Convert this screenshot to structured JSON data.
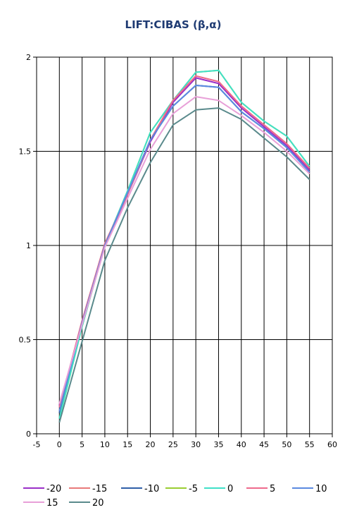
{
  "chart_data": {
    "type": "line",
    "title": "LIFT:CIBAS (β,α)",
    "xlim": [
      -5,
      60
    ],
    "ylim": [
      0,
      2
    ],
    "x_ticks": [
      "-5",
      "0",
      "5",
      "10",
      "15",
      "20",
      "25",
      "30",
      "35",
      "40",
      "45",
      "50",
      "55",
      "60"
    ],
    "y_ticks": [
      "0",
      "0.5",
      "1",
      "1.5",
      "2"
    ],
    "grid": true,
    "legend_position": "bottom",
    "x": [
      0,
      5,
      10,
      15,
      20,
      25,
      30,
      35,
      40,
      45,
      50,
      55
    ],
    "series": [
      {
        "name": "-20",
        "color": "#9b30c8",
        "values": [
          0.15,
          0.59,
          1.0,
          1.27,
          1.55,
          1.76,
          1.89,
          1.86,
          1.73,
          1.63,
          1.53,
          1.4
        ]
      },
      {
        "name": "-15",
        "color": "#e87a7a",
        "values": [
          0.14,
          0.6,
          1.01,
          1.27,
          1.56,
          1.77,
          1.9,
          1.87,
          1.74,
          1.64,
          1.54,
          1.41
        ]
      },
      {
        "name": "-10",
        "color": "#2f5fa8",
        "values": [
          0.11,
          0.59,
          1.0,
          1.28,
          1.56,
          1.74,
          1.85,
          1.84,
          1.71,
          1.62,
          1.52,
          1.39
        ]
      },
      {
        "name": "-5",
        "color": "#9acd32",
        "values": [
          0.08,
          0.57,
          1.0,
          1.29,
          1.6,
          1.77,
          1.92,
          1.93,
          1.76,
          1.66,
          1.58,
          1.42
        ]
      },
      {
        "name": "0",
        "color": "#40e0c8",
        "values": [
          0.08,
          0.57,
          1.0,
          1.29,
          1.6,
          1.77,
          1.92,
          1.93,
          1.76,
          1.66,
          1.58,
          1.42
        ]
      },
      {
        "name": "5",
        "color": "#ee6a8c",
        "values": [
          0.14,
          0.6,
          1.01,
          1.27,
          1.56,
          1.77,
          1.9,
          1.87,
          1.74,
          1.64,
          1.54,
          1.41
        ]
      },
      {
        "name": "10",
        "color": "#5b8ae0",
        "values": [
          0.12,
          0.59,
          1.0,
          1.28,
          1.56,
          1.74,
          1.85,
          1.84,
          1.71,
          1.62,
          1.52,
          1.39
        ]
      },
      {
        "name": "15",
        "color": "#e8a0d8",
        "values": [
          0.16,
          0.58,
          0.99,
          1.25,
          1.51,
          1.7,
          1.79,
          1.77,
          1.69,
          1.6,
          1.5,
          1.38
        ]
      },
      {
        "name": "20",
        "color": "#5a8a8c",
        "values": [
          0.06,
          0.49,
          0.92,
          1.2,
          1.44,
          1.64,
          1.72,
          1.73,
          1.67,
          1.57,
          1.47,
          1.35
        ]
      }
    ]
  }
}
